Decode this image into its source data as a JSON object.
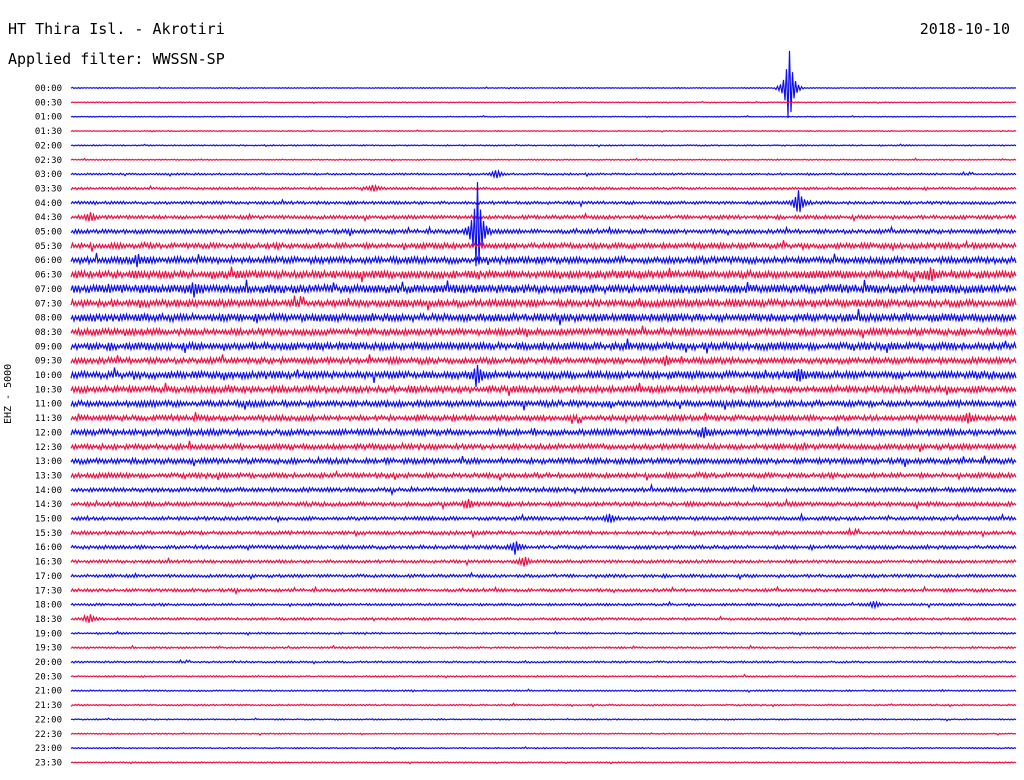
{
  "header": {
    "station": "HT Thira Isl. - Akrotiri",
    "date": "2018-10-10",
    "filter": "Applied filter: WWSSN-SP"
  },
  "channel_label": "EHZ - 5000",
  "colors": {
    "blue": "#1010ee",
    "red": "#ee1044"
  },
  "chart_data": {
    "type": "line",
    "title": "HT Thira Isl. - Akrotiri",
    "ylabel": "EHZ - 5000",
    "categories": [
      "00:00",
      "00:30",
      "01:00",
      "01:30",
      "02:00",
      "02:30",
      "03:00",
      "03:30",
      "04:00",
      "04:30",
      "05:00",
      "05:30",
      "06:00",
      "06:30",
      "07:00",
      "07:30",
      "08:00",
      "08:30",
      "09:00",
      "09:30",
      "10:00",
      "10:30",
      "11:00",
      "11:30",
      "12:00",
      "12:30",
      "13:00",
      "13:30",
      "14:00",
      "14:30",
      "15:00",
      "15:30",
      "16:00",
      "16:30",
      "17:00",
      "17:30",
      "18:00",
      "18:30",
      "19:00",
      "19:30",
      "20:00",
      "20:30",
      "21:00",
      "21:30",
      "22:00",
      "22:30",
      "23:00",
      "23:30"
    ],
    "series_colors": [
      "blue",
      "red",
      "blue",
      "red",
      "blue",
      "red",
      "blue",
      "red",
      "blue",
      "red",
      "blue",
      "red",
      "blue",
      "red",
      "blue",
      "red",
      "blue",
      "red",
      "blue",
      "red",
      "blue",
      "red",
      "blue",
      "red",
      "blue",
      "red",
      "blue",
      "red",
      "blue",
      "red",
      "blue",
      "red",
      "blue",
      "red",
      "blue",
      "red",
      "blue",
      "red",
      "blue",
      "red",
      "blue",
      "red",
      "blue",
      "red",
      "blue",
      "red",
      "blue",
      "red"
    ],
    "noise_level": [
      0.3,
      0.3,
      0.3,
      0.3,
      0.4,
      0.4,
      0.6,
      0.8,
      1.0,
      1.2,
      1.4,
      1.8,
      2.2,
      2.6,
      2.8,
      2.4,
      2.6,
      2.2,
      2.4,
      2.0,
      2.4,
      2.2,
      2.0,
      1.8,
      2.0,
      1.8,
      1.8,
      1.6,
      1.4,
      1.4,
      1.2,
      1.2,
      1.2,
      1.0,
      1.0,
      1.0,
      0.8,
      0.8,
      0.6,
      0.6,
      0.6,
      0.5,
      0.5,
      0.5,
      0.4,
      0.4,
      0.4,
      0.4
    ],
    "events": [
      {
        "row": 0,
        "t": 0.76,
        "amp": 40
      },
      {
        "row": 6,
        "t": 0.45,
        "amp": 4
      },
      {
        "row": 7,
        "t": 0.32,
        "amp": 3
      },
      {
        "row": 8,
        "t": 0.77,
        "amp": 12
      },
      {
        "row": 9,
        "t": 0.02,
        "amp": 4
      },
      {
        "row": 10,
        "t": 0.43,
        "amp": 50
      },
      {
        "row": 12,
        "t": 0.07,
        "amp": 5
      },
      {
        "row": 13,
        "t": 0.91,
        "amp": 4
      },
      {
        "row": 14,
        "t": 0.13,
        "amp": 5
      },
      {
        "row": 19,
        "t": 0.63,
        "amp": 4
      },
      {
        "row": 20,
        "t": 0.43,
        "amp": 8
      },
      {
        "row": 20,
        "t": 0.77,
        "amp": 5
      },
      {
        "row": 23,
        "t": 0.95,
        "amp": 4
      },
      {
        "row": 24,
        "t": 0.67,
        "amp": 5
      },
      {
        "row": 29,
        "t": 0.42,
        "amp": 4
      },
      {
        "row": 30,
        "t": 0.57,
        "amp": 4
      },
      {
        "row": 32,
        "t": 0.47,
        "amp": 6
      },
      {
        "row": 33,
        "t": 0.48,
        "amp": 5
      },
      {
        "row": 36,
        "t": 0.85,
        "amp": 3
      },
      {
        "row": 37,
        "t": 0.02,
        "amp": 4
      }
    ]
  }
}
